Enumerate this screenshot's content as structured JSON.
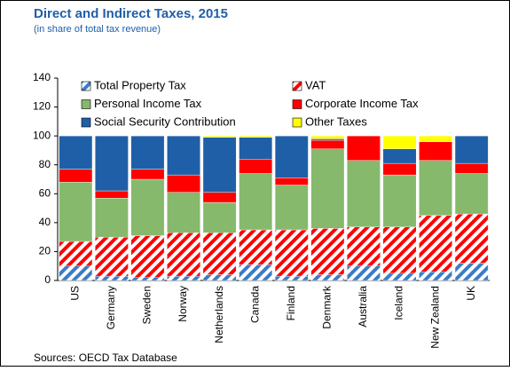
{
  "chart_data": {
    "type": "stacked-bar",
    "title": "Direct and Indirect Taxes, 2015",
    "subtitle": "(in share of total tax revenue)",
    "source": "Sources: OECD Tax Database",
    "categories": [
      "US",
      "Germany",
      "Sweden",
      "Norway",
      "Netherlands",
      "Canada",
      "Finland",
      "Denmark",
      "Australia",
      "Iceland",
      "New Zealand",
      "UK"
    ],
    "series": [
      {
        "name": "Total Property Tax",
        "color": "#3a7cc8",
        "hatched": true,
        "values": [
          10,
          3,
          2,
          3,
          4,
          11,
          3,
          4,
          10,
          5,
          6,
          12
        ]
      },
      {
        "name": "VAT",
        "color": "#ff0000",
        "hatched": true,
        "values": [
          17,
          27,
          29,
          30,
          29,
          24,
          32,
          32,
          27,
          32,
          39,
          34
        ]
      },
      {
        "name": "Personal Income Tax",
        "color": "#86b96c",
        "hatched": false,
        "values": [
          41,
          27,
          39,
          28,
          21,
          39,
          31,
          55,
          46,
          36,
          38,
          28
        ]
      },
      {
        "name": "Corporate Income Tax",
        "color": "#ff0000",
        "hatched": false,
        "values": [
          9,
          5,
          7,
          12,
          7,
          10,
          5,
          6,
          17,
          8,
          13,
          7
        ]
      },
      {
        "name": "Social Security Contribution",
        "color": "#1f5fa8",
        "hatched": false,
        "values": [
          23,
          38,
          23,
          27,
          38,
          15,
          29,
          1,
          0,
          10,
          0,
          19
        ]
      },
      {
        "name": "Other Taxes",
        "color": "#ffff00",
        "hatched": false,
        "values": [
          0,
          0,
          0,
          0,
          1,
          1,
          0,
          2,
          0,
          9,
          4,
          0
        ]
      }
    ],
    "ylim": [
      0,
      140
    ],
    "yticks": [
      0,
      20,
      40,
      60,
      80,
      100,
      120,
      140
    ],
    "grid": false
  }
}
